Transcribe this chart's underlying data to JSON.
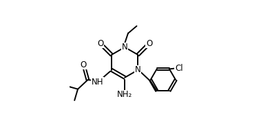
{
  "background_color": "#ffffff",
  "line_color": "#000000",
  "line_width": 1.4,
  "font_size": 8.5,
  "figsize": [
    3.95,
    1.95
  ],
  "dpi": 100,
  "xlim": [
    0.0,
    1.0
  ],
  "ylim": [
    0.0,
    1.0
  ]
}
